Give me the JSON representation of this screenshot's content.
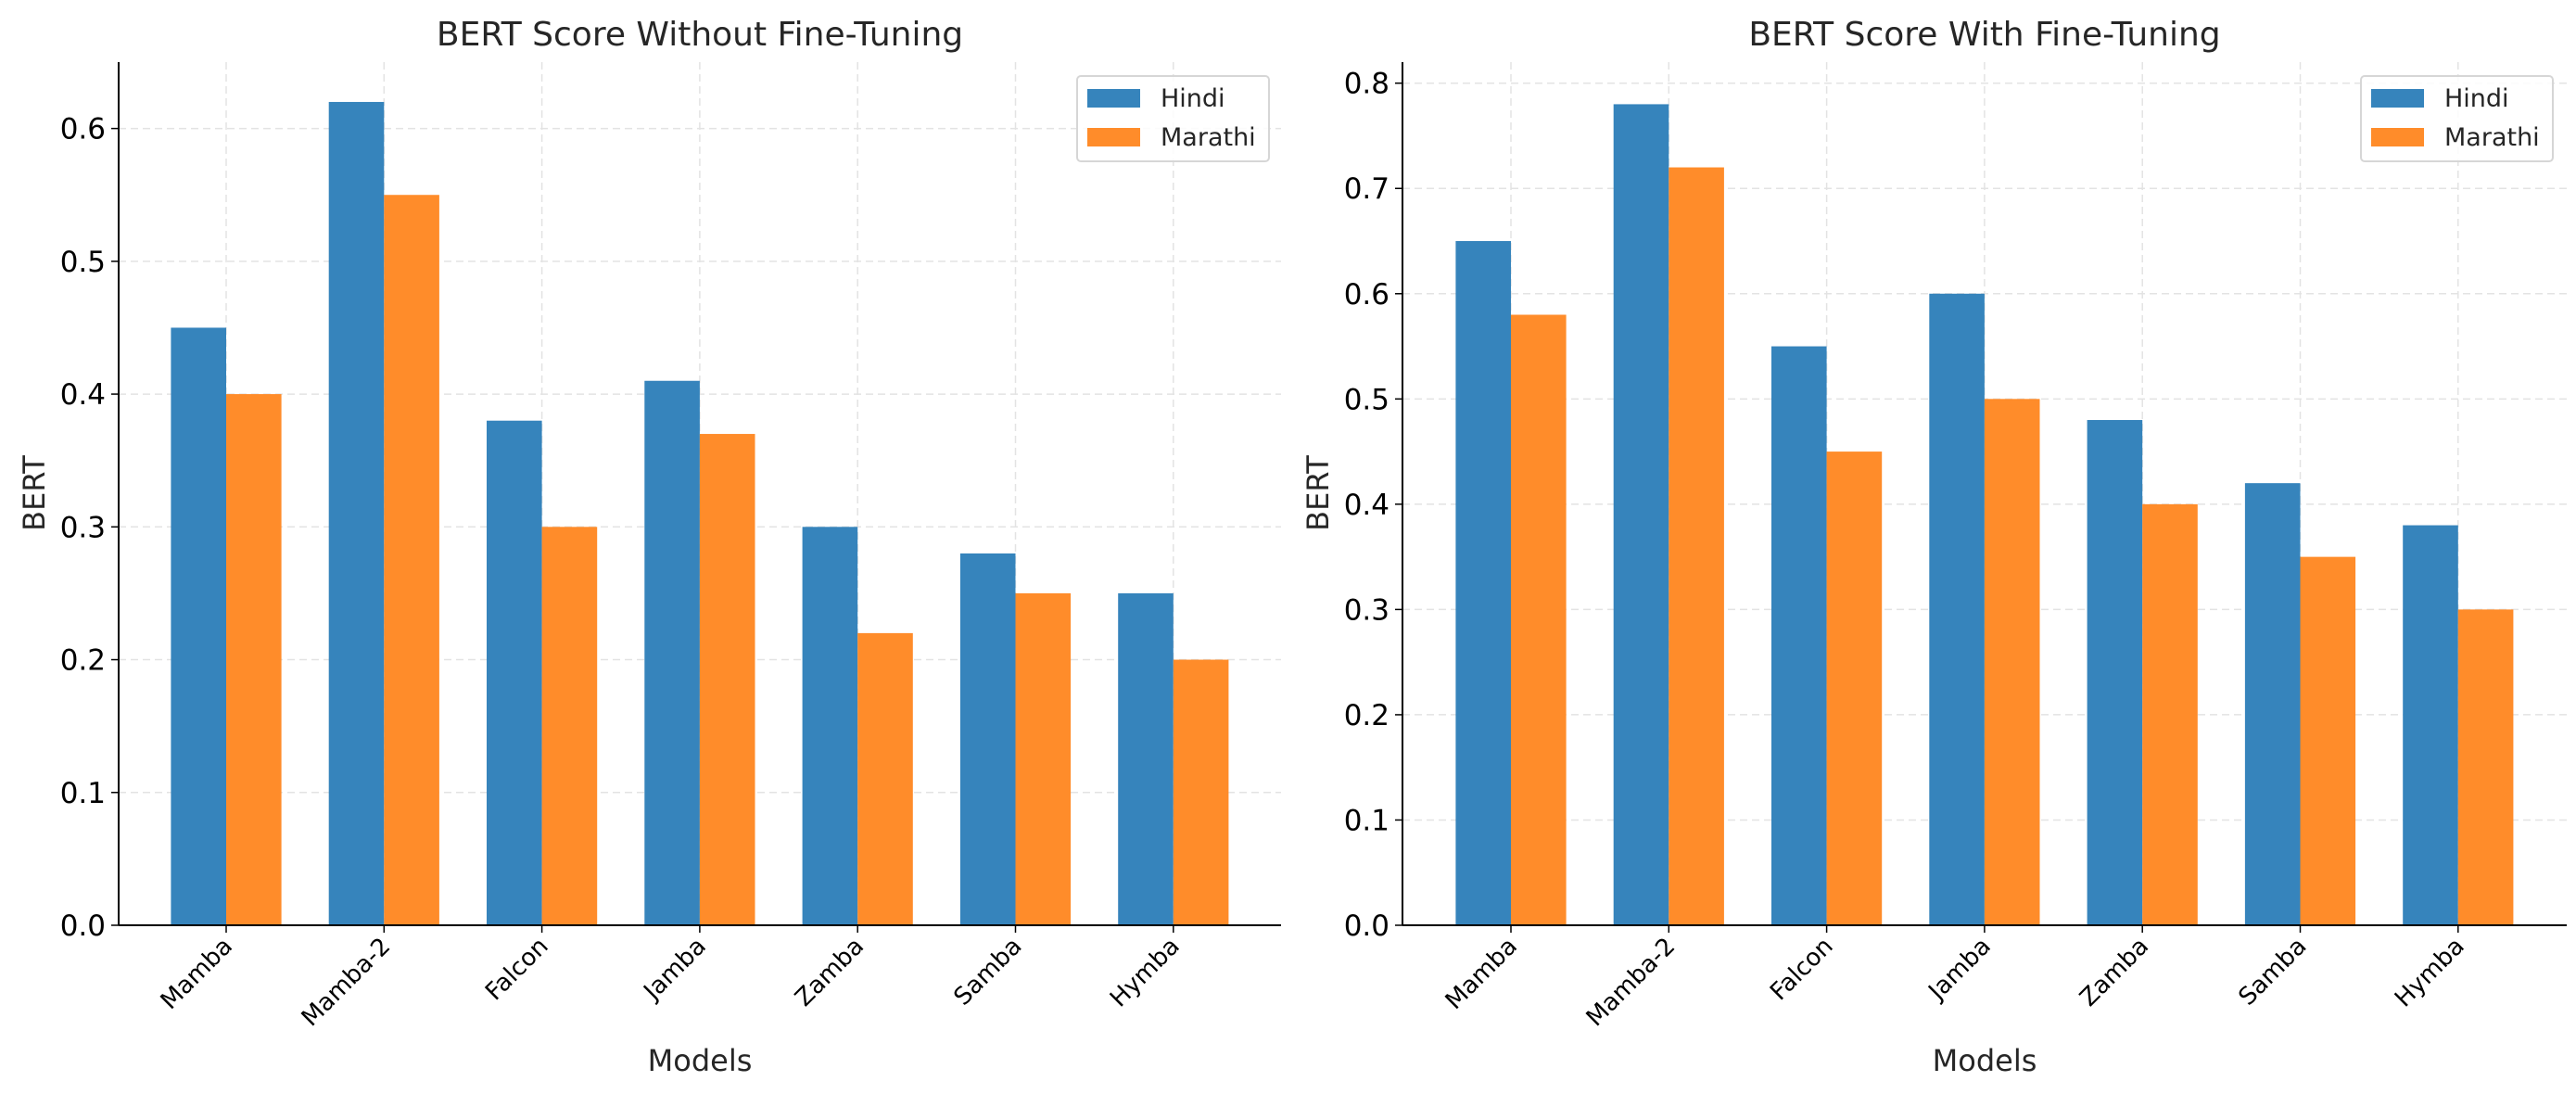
{
  "chart_data": [
    {
      "type": "bar",
      "title": "BERT Score Without Fine-Tuning",
      "xlabel": "Models",
      "ylabel": "BERT",
      "ylim": [
        0,
        0.65
      ],
      "yticks": [
        "0.0",
        "0.1",
        "0.2",
        "0.3",
        "0.4",
        "0.5",
        "0.6"
      ],
      "grid": true,
      "legend_placement": "top-right",
      "categories": [
        "Mamba",
        "Mamba-2",
        "Falcon",
        "Jamba",
        "Zamba",
        "Samba",
        "Hymba"
      ],
      "series": [
        {
          "name": "Hindi",
          "color": "#3684bc",
          "values": [
            0.45,
            0.62,
            0.38,
            0.41,
            0.3,
            0.28,
            0.25
          ]
        },
        {
          "name": "Marathi",
          "color": "#ff8c2a",
          "values": [
            0.4,
            0.55,
            0.3,
            0.37,
            0.22,
            0.25,
            0.2
          ]
        }
      ]
    },
    {
      "type": "bar",
      "title": "BERT Score With Fine-Tuning",
      "xlabel": "Models",
      "ylabel": "BERT",
      "ylim": [
        0,
        0.82
      ],
      "yticks": [
        "0.0",
        "0.1",
        "0.2",
        "0.3",
        "0.4",
        "0.5",
        "0.6",
        "0.7",
        "0.8"
      ],
      "grid": true,
      "legend_placement": "top-right",
      "categories": [
        "Mamba",
        "Mamba-2",
        "Falcon",
        "Jamba",
        "Zamba",
        "Samba",
        "Hymba"
      ],
      "series": [
        {
          "name": "Hindi",
          "color": "#3684bc",
          "values": [
            0.65,
            0.78,
            0.55,
            0.6,
            0.48,
            0.42,
            0.38
          ]
        },
        {
          "name": "Marathi",
          "color": "#ff8c2a",
          "values": [
            0.58,
            0.72,
            0.45,
            0.5,
            0.4,
            0.35,
            0.3
          ]
        }
      ]
    }
  ]
}
